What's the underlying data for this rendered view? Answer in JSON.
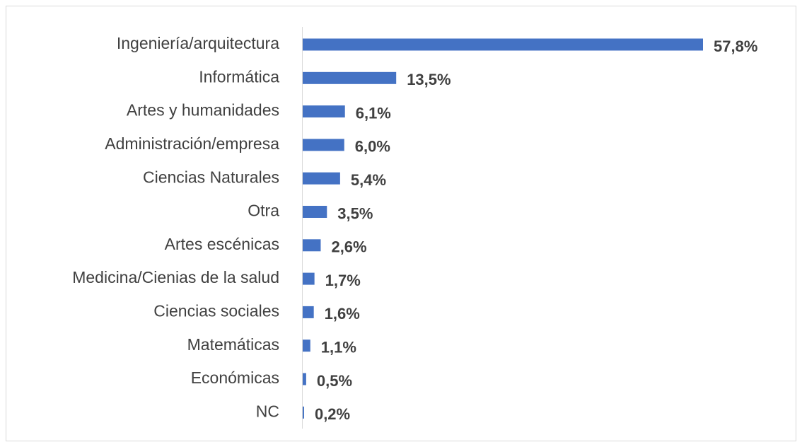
{
  "chart_data": {
    "type": "bar",
    "orientation": "horizontal",
    "categories": [
      "Ingeniería/arquitectura",
      "Informática",
      "Artes y humanidades",
      "Administración/empresa",
      "Ciencias Naturales",
      "Otra",
      "Artes escénicas",
      "Medicina/Cienias de la salud",
      "Ciencias sociales",
      "Matemáticas",
      "Económicas",
      "NC"
    ],
    "values": [
      57.8,
      13.5,
      6.1,
      6.0,
      5.4,
      3.5,
      2.6,
      1.7,
      1.6,
      1.1,
      0.5,
      0.2
    ],
    "value_labels": [
      "57,8%",
      "13,5%",
      "6,1%",
      "6,0%",
      "5,4%",
      "3,5%",
      "2,6%",
      "1,7%",
      "1,6%",
      "1,1%",
      "0,5%",
      "0,2%"
    ],
    "color": "#4472c4"
  }
}
